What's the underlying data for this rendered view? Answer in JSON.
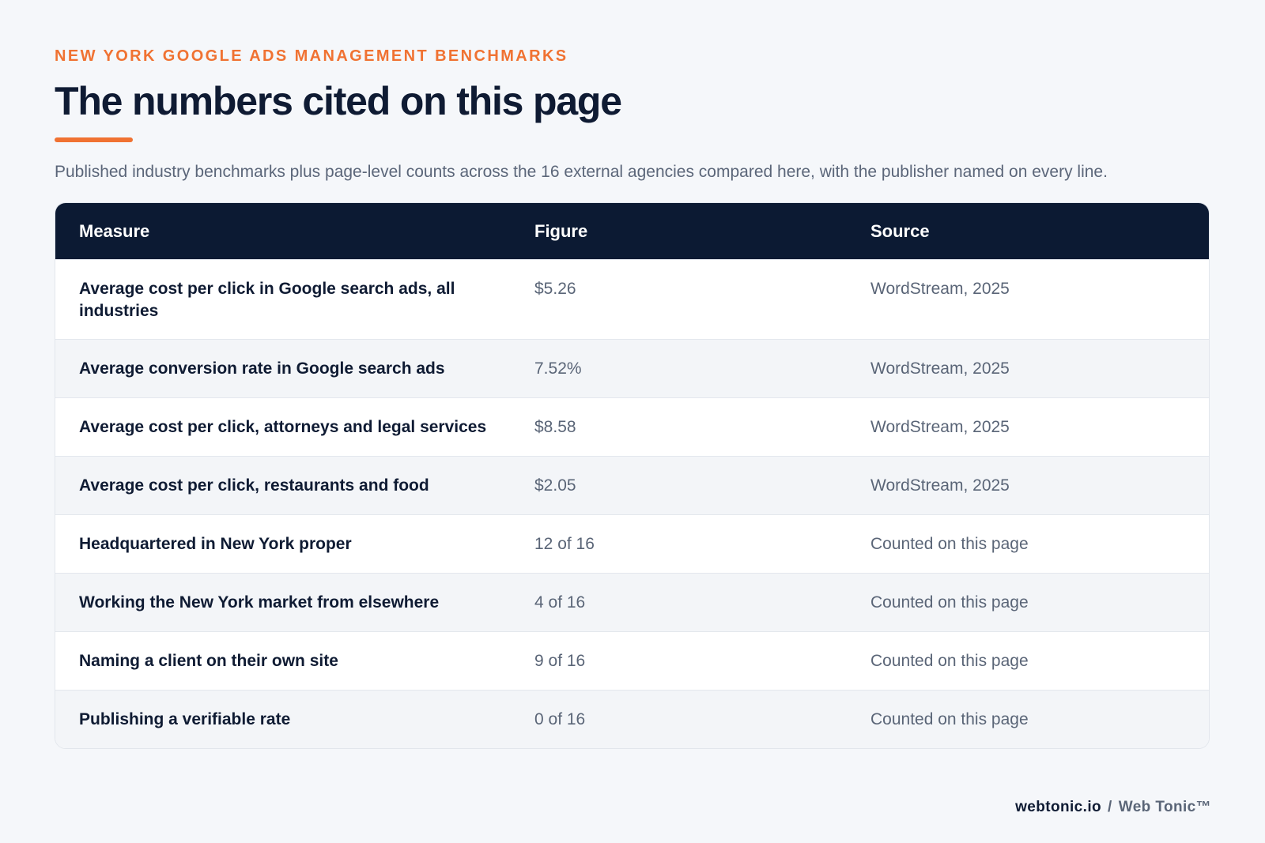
{
  "header": {
    "eyebrow": "NEW YORK GOOGLE ADS MANAGEMENT BENCHMARKS",
    "title": "The numbers cited on this page",
    "subtitle": "Published industry benchmarks plus page-level counts across the 16 external agencies compared here, with the publisher named on every line."
  },
  "table": {
    "columns": [
      "Measure",
      "Figure",
      "Source"
    ],
    "rows": [
      {
        "measure": "Average cost per click in Google search ads, all industries",
        "figure": "$5.26",
        "source": "WordStream, 2025"
      },
      {
        "measure": "Average conversion rate in Google search ads",
        "figure": "7.52%",
        "source": "WordStream, 2025"
      },
      {
        "measure": "Average cost per click, attorneys and legal services",
        "figure": "$8.58",
        "source": "WordStream, 2025"
      },
      {
        "measure": "Average cost per click, restaurants and food",
        "figure": "$2.05",
        "source": "WordStream, 2025"
      },
      {
        "measure": "Headquartered in New York proper",
        "figure": "12 of 16",
        "source": "Counted on this page"
      },
      {
        "measure": "Working the New York market from elsewhere",
        "figure": "4 of 16",
        "source": "Counted on this page"
      },
      {
        "measure": "Naming a client on their own site",
        "figure": "9 of 16",
        "source": "Counted on this page"
      },
      {
        "measure": "Publishing a verifiable rate",
        "figure": "0 of 16",
        "source": "Counted on this page"
      }
    ]
  },
  "footer": {
    "domain": "webtonic.io",
    "separator": "/",
    "brand": "Web Tonic™"
  },
  "colors": {
    "accent": "#f07232",
    "header_bg": "#0c1a33",
    "text_dark": "#0f1b33",
    "text_muted": "#5a6577"
  }
}
